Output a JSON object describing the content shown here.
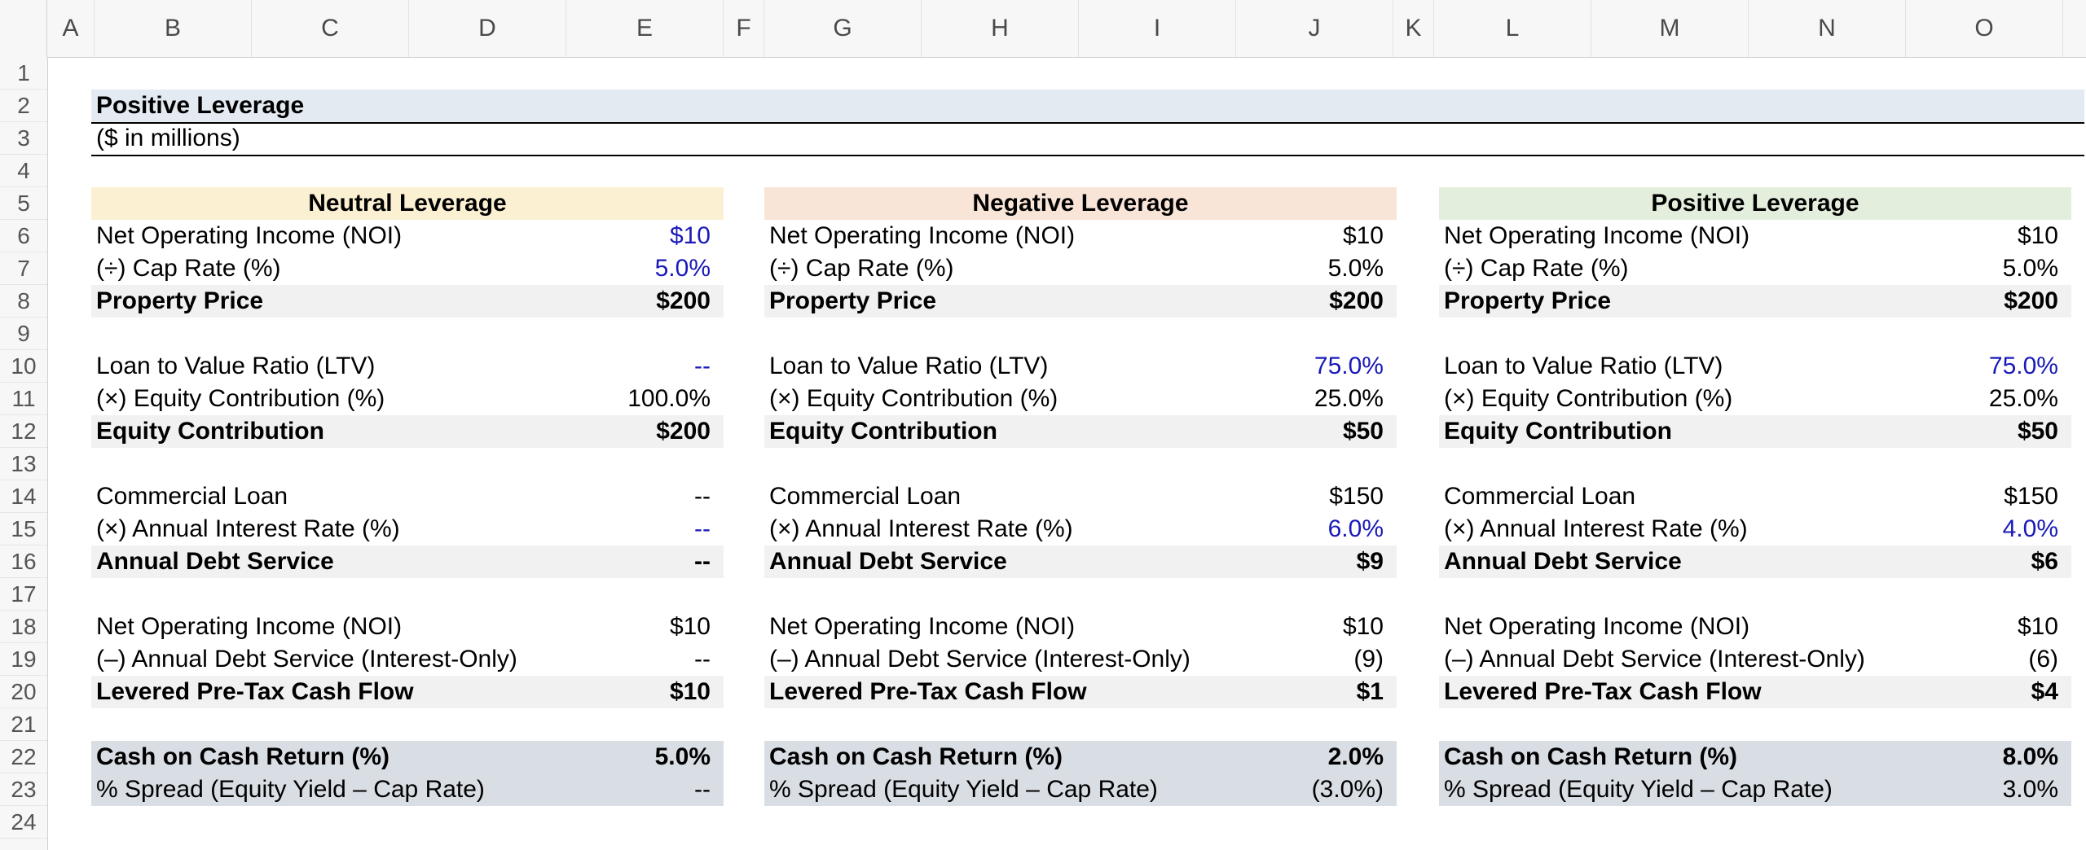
{
  "columns": [
    "A",
    "B",
    "C",
    "D",
    "E",
    "F",
    "G",
    "H",
    "I",
    "J",
    "K",
    "L",
    "M",
    "N",
    "O"
  ],
  "rows": [
    "1",
    "2",
    "3",
    "4",
    "5",
    "6",
    "7",
    "8",
    "9",
    "10",
    "11",
    "12",
    "13",
    "14",
    "15",
    "16",
    "17",
    "18",
    "19",
    "20",
    "21",
    "22",
    "23",
    "24"
  ],
  "title": "Positive Leverage",
  "subtitle": "($ in millions)",
  "colors": {
    "title_band": "#e4eaf2",
    "neutral_header": "#fbf0d2",
    "negative_header": "#f9e4d8",
    "positive_header": "#e3efdc",
    "subtotal_band": "#f1f1f1",
    "result_band": "#d9dde4",
    "input_font": "#1a1ab8"
  },
  "blocks": [
    {
      "header": "Neutral Leverage",
      "noi": "$10",
      "cap_rate": "5.0%",
      "property_price": "$200",
      "ltv": "--",
      "equity_pct": "100.0%",
      "equity_contribution": "$200",
      "loan": "--",
      "interest_rate": "--",
      "debt_service": "--",
      "noi_2": "$10",
      "less_debt_service": "--",
      "cash_flow": "$10",
      "coc_return": "5.0%",
      "spread": "--"
    },
    {
      "header": "Negative Leverage",
      "noi": "$10",
      "cap_rate": "5.0%",
      "property_price": "$200",
      "ltv": "75.0%",
      "equity_pct": "25.0%",
      "equity_contribution": "$50",
      "loan": "$150",
      "interest_rate": "6.0%",
      "debt_service": "$9",
      "noi_2": "$10",
      "less_debt_service": "(9)",
      "cash_flow": "$1",
      "coc_return": "2.0%",
      "spread": "(3.0%)"
    },
    {
      "header": "Positive Leverage",
      "noi": "$10",
      "cap_rate": "5.0%",
      "property_price": "$200",
      "ltv": "75.0%",
      "equity_pct": "25.0%",
      "equity_contribution": "$50",
      "loan": "$150",
      "interest_rate": "4.0%",
      "debt_service": "$6",
      "noi_2": "$10",
      "less_debt_service": "(6)",
      "cash_flow": "$4",
      "coc_return": "8.0%",
      "spread": "3.0%"
    }
  ],
  "labels": {
    "noi": "Net Operating Income (NOI)",
    "cap_rate": "(÷) Cap Rate (%)",
    "property_price": "Property Price",
    "ltv": "Loan to Value Ratio (LTV)",
    "equity_pct": "(×) Equity Contribution (%)",
    "equity_contribution": "Equity Contribution",
    "loan": "Commercial Loan",
    "interest_rate": "(×) Annual Interest Rate (%)",
    "debt_service": "Annual Debt Service",
    "noi_2": "Net Operating Income (NOI)",
    "less_debt_service": "(–) Annual Debt Service (Interest-Only)",
    "cash_flow": "Levered Pre-Tax Cash Flow",
    "coc_return": "Cash on Cash Return (%)",
    "spread": "% Spread (Equity Yield – Cap Rate)"
  }
}
